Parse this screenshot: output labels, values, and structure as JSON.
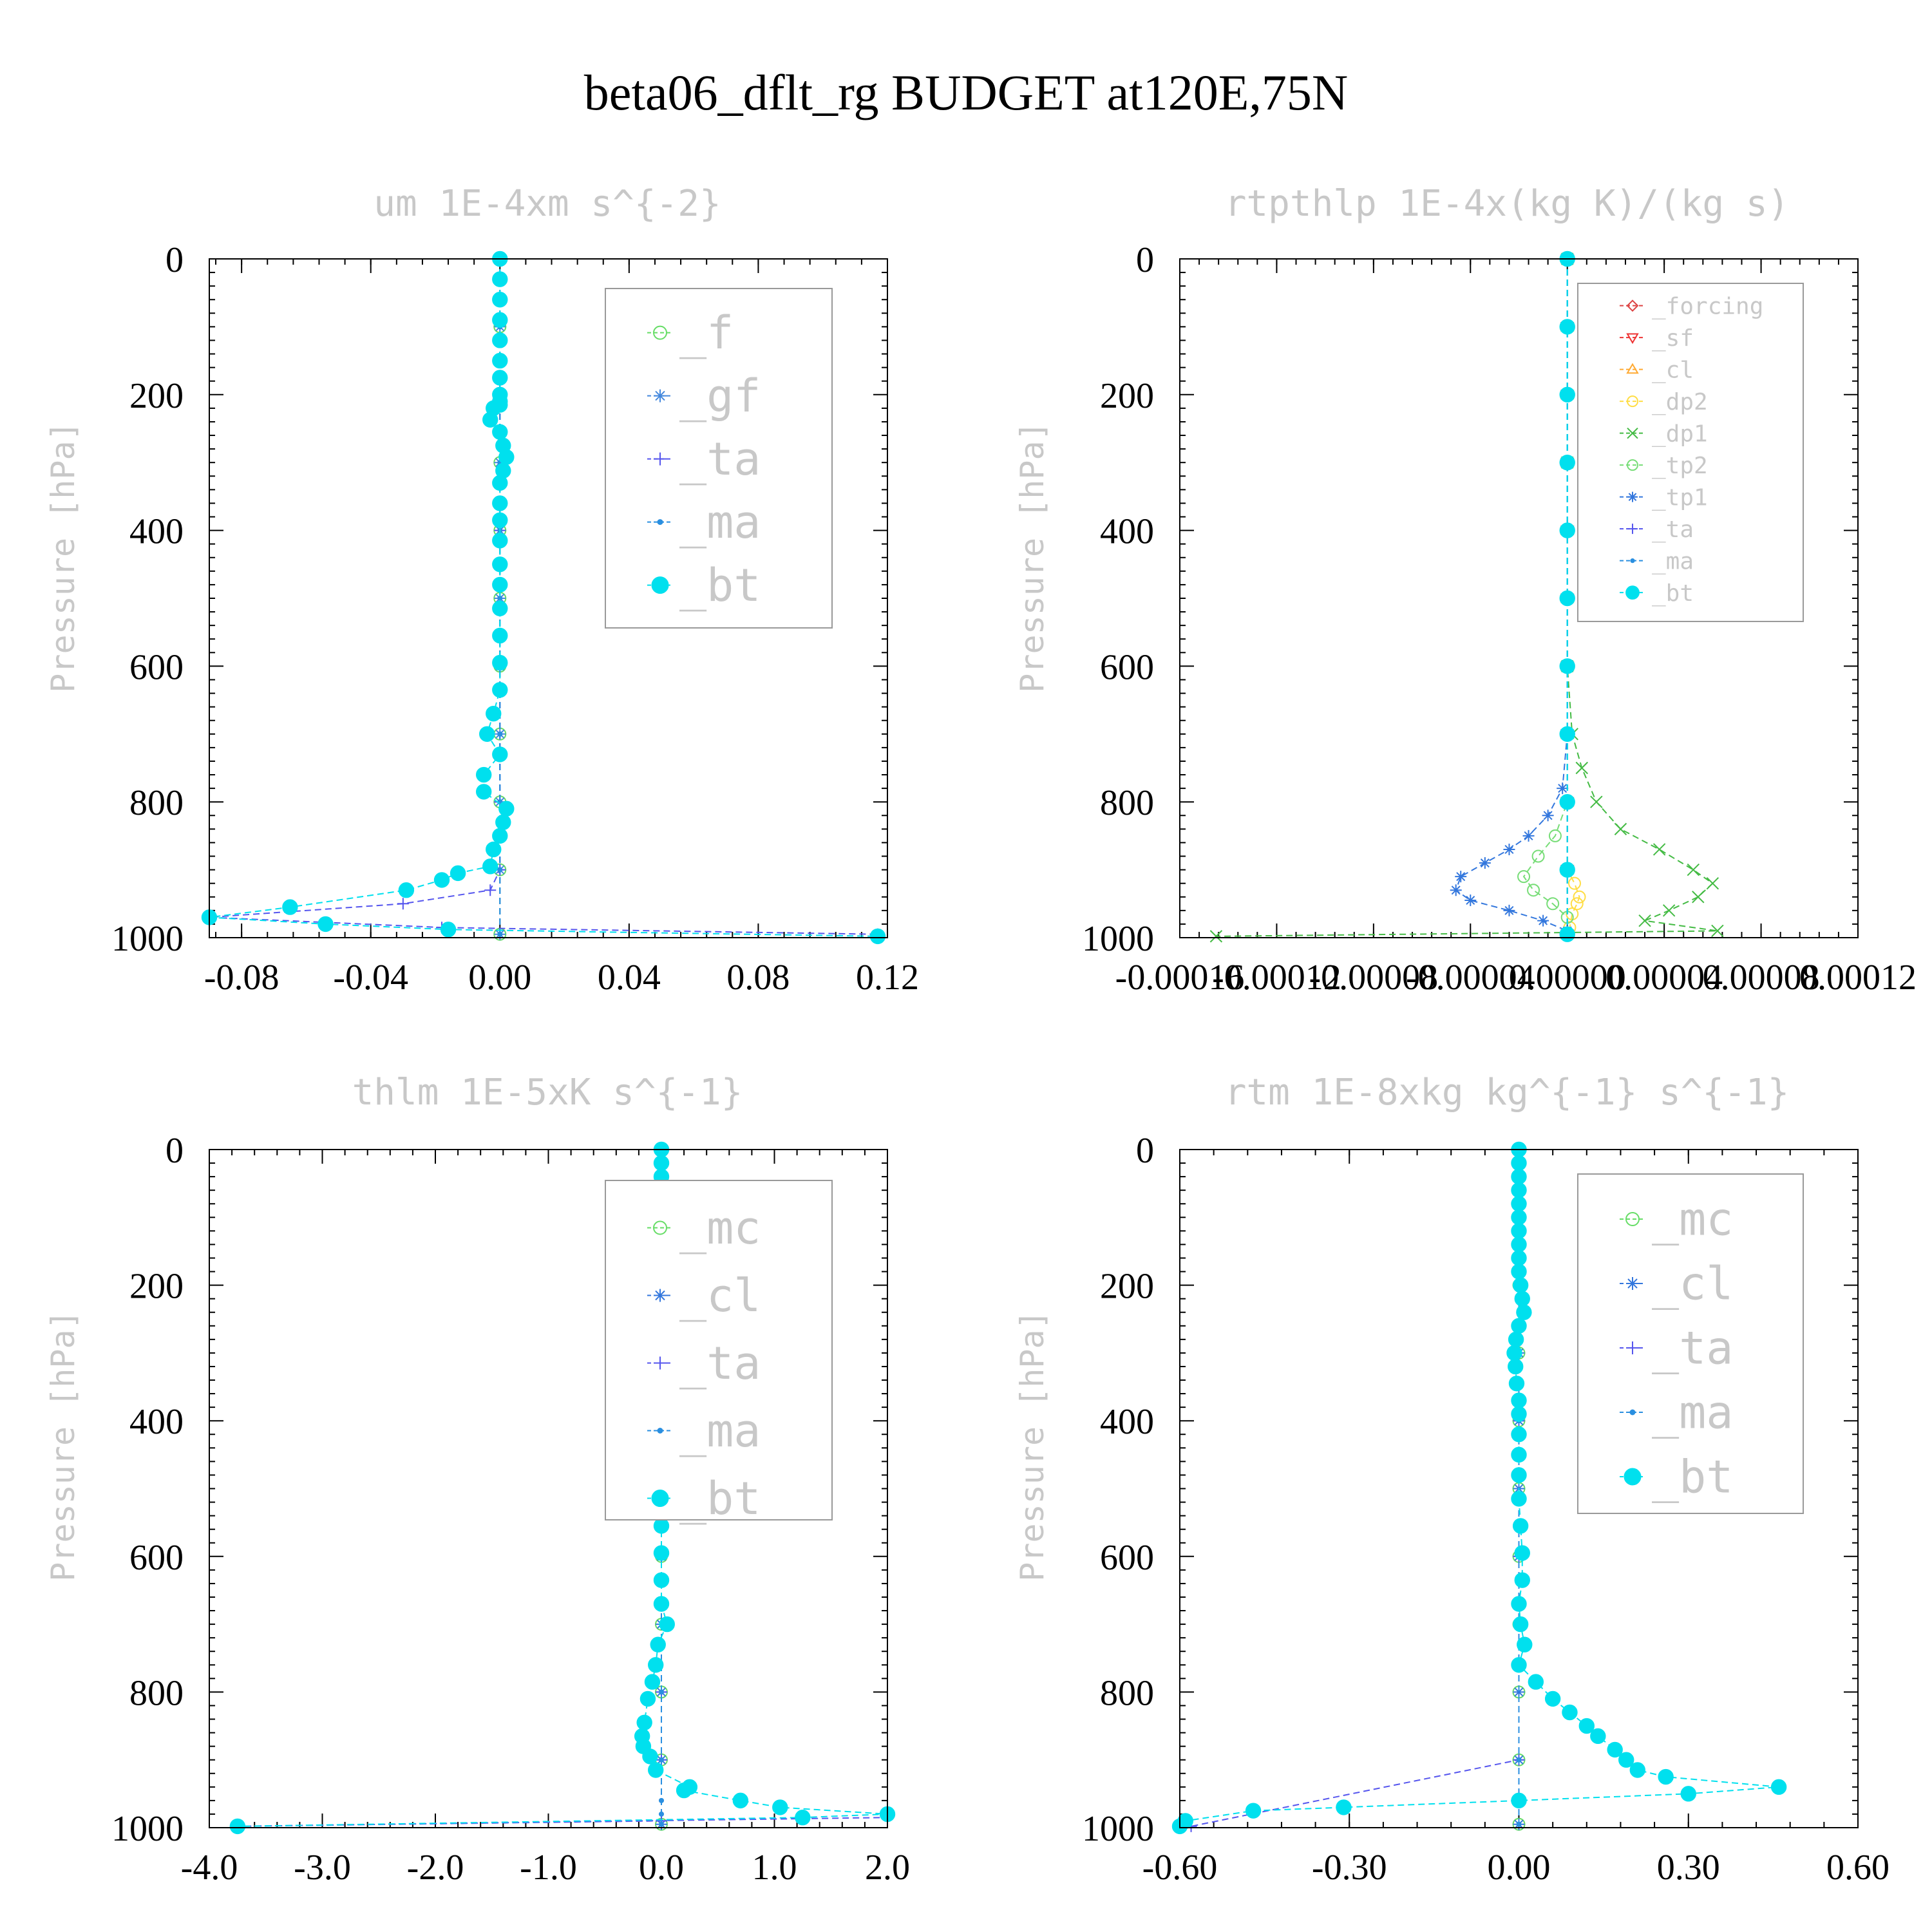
{
  "title": "beta06_dflt_rg  BUDGET at120E,75N",
  "chart_data": [
    {
      "type": "line",
      "title": "um  1E-4xm s^{-2}",
      "ylabel": "Pressure [hPa]",
      "xlim": [
        -0.09,
        0.12
      ],
      "ylim": [
        1000,
        0
      ],
      "xticks": [
        -0.08,
        -0.04,
        0.0,
        0.04,
        0.08,
        0.12
      ],
      "xtick_labels": [
        "-0.08",
        "-0.04",
        "0.00",
        "0.04",
        "0.08",
        "0.12"
      ],
      "yticks": [
        0,
        200,
        400,
        600,
        800,
        1000
      ],
      "ytick_labels": [
        "0",
        "200",
        "400",
        "600",
        "800",
        "1000"
      ],
      "legend": {
        "position": "top-right",
        "entries": [
          "_f",
          "_gf",
          "_ta",
          "_ma",
          "_bt"
        ]
      },
      "series": [
        {
          "name": "_f",
          "color": "#66dd66",
          "marker": "circle-open",
          "x": [
            0,
            0,
            0,
            0,
            0,
            0,
            0,
            0,
            0,
            0,
            0
          ],
          "y": [
            0,
            100,
            200,
            300,
            400,
            500,
            600,
            700,
            800,
            900,
            995
          ]
        },
        {
          "name": "_gf",
          "color": "#4488dd",
          "marker": "star",
          "x": [
            0,
            0,
            0,
            0,
            0,
            0,
            0,
            0,
            0,
            0,
            0
          ],
          "y": [
            0,
            100,
            200,
            300,
            400,
            500,
            600,
            700,
            800,
            900,
            995
          ]
        },
        {
          "name": "_ta",
          "color": "#5555ee",
          "marker": "plus",
          "x": [
            0,
            0,
            0,
            0,
            0,
            0,
            -0.003,
            -0.03,
            -0.09,
            -0.018,
            0.117
          ],
          "y": [
            0,
            200,
            400,
            600,
            800,
            900,
            930,
            950,
            970,
            985,
            995
          ]
        },
        {
          "name": "_ma",
          "color": "#2a8fe0",
          "marker": "dot",
          "x": [
            0,
            0,
            0,
            0,
            0,
            0,
            0,
            0,
            0,
            0,
            0
          ],
          "y": [
            0,
            100,
            200,
            300,
            400,
            500,
            600,
            700,
            800,
            900,
            995
          ]
        },
        {
          "name": "_bt",
          "color": "#00e0ee",
          "marker": "filled-circle",
          "x": [
            0.0,
            0.0,
            0.0,
            0.0,
            0.0,
            0.0,
            0.0,
            0.0,
            0.0,
            0.0,
            -0.002,
            -0.003,
            0.0,
            0.001,
            0.002,
            0.001,
            0.0,
            0.0,
            0.0,
            0.0,
            0.0,
            0.0,
            0.0,
            0.0,
            0.0,
            0.0,
            -0.002,
            -0.004,
            0.0,
            -0.005,
            -0.005,
            0.002,
            0.001,
            0.0,
            -0.002,
            -0.003,
            -0.013,
            -0.018,
            -0.029,
            -0.065,
            -0.09,
            -0.054,
            -0.016,
            0.117
          ],
          "y": [
            0,
            30,
            60,
            90,
            120,
            150,
            175,
            200,
            210,
            215,
            220,
            237,
            255,
            275,
            292,
            312,
            330,
            360,
            385,
            415,
            450,
            480,
            515,
            555,
            595,
            635,
            670,
            700,
            730,
            760,
            785,
            810,
            830,
            850,
            870,
            895,
            905,
            915,
            930,
            955,
            970,
            980,
            988,
            998
          ]
        }
      ]
    },
    {
      "type": "line",
      "title": "rtpthlp  1E-4x(kg K)/(kg s)",
      "ylabel": "Pressure [hPa]",
      "xlim": [
        -0.00016,
        0.00012
      ],
      "ylim": [
        1000,
        0
      ],
      "xticks": [
        -0.00016,
        -0.00012,
        -8e-05,
        -4e-05,
        0.0,
        4e-05,
        8e-05,
        0.00012
      ],
      "xtick_labels": [
        "-0.00016",
        "-0.00012",
        "-0.00008",
        "-0.00004",
        "0.00000",
        "0.00004",
        "0.00008",
        "0.00012"
      ],
      "yticks": [
        0,
        200,
        400,
        600,
        800,
        1000
      ],
      "ytick_labels": [
        "0",
        "200",
        "400",
        "600",
        "800",
        "1000"
      ],
      "legend": {
        "position": "top-right",
        "entries": [
          "_forcing",
          "_sf",
          "_cl",
          "_dp2",
          "_dp1",
          "_tp2",
          "_tp1",
          "_ta",
          "_ma",
          "_bt"
        ]
      },
      "series": [
        {
          "name": "_forcing",
          "color": "#dd4444",
          "marker": "diamond-open",
          "x": [
            0,
            0,
            0,
            0,
            0,
            0,
            0,
            0,
            0,
            0,
            0
          ],
          "y": [
            0,
            100,
            200,
            300,
            400,
            500,
            600,
            700,
            800,
            900,
            995
          ]
        },
        {
          "name": "_sf",
          "color": "#ee3333",
          "marker": "triangle-down",
          "x": [
            0,
            0,
            0,
            0,
            0,
            0,
            0,
            0,
            0,
            0,
            0
          ],
          "y": [
            0,
            100,
            200,
            300,
            400,
            500,
            600,
            700,
            800,
            900,
            995
          ]
        },
        {
          "name": "_cl",
          "color": "#ffaa33",
          "marker": "triangle-up",
          "x": [
            0,
            0,
            0,
            0,
            0,
            0,
            0,
            0,
            0,
            0,
            0
          ],
          "y": [
            0,
            100,
            200,
            300,
            400,
            500,
            600,
            700,
            800,
            900,
            995
          ]
        },
        {
          "name": "_dp2",
          "color": "#ffdd44",
          "marker": "circle-open",
          "x": [
            0,
            0,
            0,
            0,
            0,
            0,
            3e-06,
            5e-06,
            4e-06,
            2e-06,
            1e-06
          ],
          "y": [
            0,
            200,
            400,
            600,
            800,
            900,
            920,
            940,
            950,
            965,
            985
          ]
        },
        {
          "name": "_dp1",
          "color": "#44bb44",
          "marker": "x",
          "x": [
            0,
            0,
            0,
            2e-06,
            6e-06,
            1.2e-05,
            2.2e-05,
            3.8e-05,
            5.2e-05,
            6e-05,
            5.4e-05,
            4.2e-05,
            3.2e-05,
            6.2e-05,
            -0.000145
          ],
          "y": [
            0,
            300,
            600,
            700,
            750,
            800,
            840,
            870,
            900,
            920,
            940,
            960,
            975,
            990,
            998
          ]
        },
        {
          "name": "_tp2",
          "color": "#77dd77",
          "marker": "circle-open",
          "x": [
            0,
            0,
            0,
            0,
            -5e-06,
            -1.2e-05,
            -1.8e-05,
            -1.4e-05,
            -6e-06,
            0.0
          ],
          "y": [
            0,
            400,
            700,
            800,
            850,
            880,
            910,
            930,
            950,
            970
          ]
        },
        {
          "name": "_tp1",
          "color": "#3377dd",
          "marker": "star",
          "x": [
            0,
            0,
            0,
            -2e-06,
            -8e-06,
            -1.6e-05,
            -2.4e-05,
            -3.4e-05,
            -4.4e-05,
            -4.6e-05,
            -4e-05,
            -2.4e-05,
            -1e-05,
            0.0
          ],
          "y": [
            0,
            400,
            700,
            780,
            820,
            850,
            870,
            890,
            910,
            930,
            945,
            960,
            975,
            990
          ]
        },
        {
          "name": "_ta",
          "color": "#5555ee",
          "marker": "plus",
          "x": [
            0,
            0,
            0,
            0,
            0
          ],
          "y": [
            0,
            300,
            600,
            900,
            995
          ]
        },
        {
          "name": "_ma",
          "color": "#2a8fe0",
          "marker": "dot",
          "x": [
            0,
            0,
            0,
            0,
            0
          ],
          "y": [
            0,
            300,
            600,
            900,
            995
          ]
        },
        {
          "name": "_bt",
          "color": "#00e0ee",
          "marker": "filled-circle",
          "x": [
            0,
            0,
            0,
            0,
            0,
            0,
            0,
            0,
            0,
            0,
            0
          ],
          "y": [
            0,
            100,
            200,
            300,
            400,
            500,
            600,
            700,
            800,
            900,
            995
          ]
        }
      ]
    },
    {
      "type": "line",
      "title": "thlm  1E-5xK s^{-1}",
      "ylabel": "Pressure [hPa]",
      "xlim": [
        -4.0,
        2.0
      ],
      "ylim": [
        1000,
        0
      ],
      "xticks": [
        -4.0,
        -3.0,
        -2.0,
        -1.0,
        0.0,
        1.0,
        2.0
      ],
      "xtick_labels": [
        "-4.0",
        "-3.0",
        "-2.0",
        "-1.0",
        "0.0",
        "1.0",
        "2.0"
      ],
      "yticks": [
        0,
        200,
        400,
        600,
        800,
        1000
      ],
      "ytick_labels": [
        "0",
        "200",
        "400",
        "600",
        "800",
        "1000"
      ],
      "legend": {
        "position": "top-right",
        "entries": [
          "_mc",
          "_cl",
          "_ta",
          "_ma",
          "_bt"
        ]
      },
      "series": [
        {
          "name": "_mc",
          "color": "#66dd66",
          "marker": "circle-open",
          "x": [
            0,
            0,
            0,
            0,
            0,
            0,
            0,
            0,
            0,
            0,
            0
          ],
          "y": [
            0,
            100,
            200,
            300,
            400,
            500,
            600,
            700,
            800,
            900,
            995
          ]
        },
        {
          "name": "_cl",
          "color": "#3377dd",
          "marker": "star",
          "x": [
            0,
            0,
            0,
            0,
            0,
            0,
            0,
            0,
            0,
            0,
            0
          ],
          "y": [
            0,
            100,
            200,
            300,
            400,
            500,
            600,
            700,
            800,
            900,
            995
          ]
        },
        {
          "name": "_ta",
          "color": "#5555ee",
          "marker": "plus",
          "x": [
            0,
            0,
            0,
            0,
            0,
            0,
            0,
            -3.75,
            2.0
          ],
          "y": [
            0,
            200,
            400,
            600,
            800,
            900,
            990,
            998,
            985
          ]
        },
        {
          "name": "_ma",
          "color": "#2a8fe0",
          "marker": "dot",
          "x": [
            0,
            0,
            0,
            0,
            0,
            0,
            0,
            0,
            0
          ],
          "y": [
            0,
            200,
            400,
            600,
            800,
            900,
            960,
            980,
            995
          ]
        },
        {
          "name": "_bt",
          "color": "#00e0ee",
          "marker": "filled-circle",
          "x": [
            0.0,
            0.0,
            0.0,
            0.0,
            0.0,
            0.0,
            0.0,
            0.0,
            0.0,
            0.0,
            0.0,
            0.0,
            0.0,
            0.0,
            0.0,
            0.0,
            0.0,
            0.0,
            0.0,
            0.0,
            0.0,
            0.0,
            0.0,
            0.0,
            0.0,
            0.0,
            0.0,
            0.0,
            0.05,
            -0.03,
            -0.05,
            -0.08,
            -0.12,
            -0.15,
            -0.17,
            -0.16,
            -0.1,
            -0.05,
            0.25,
            0.2,
            0.7,
            1.05,
            2.0,
            1.25,
            -3.75
          ],
          "y": [
            0,
            20,
            40,
            60,
            80,
            100,
            120,
            140,
            160,
            180,
            200,
            220,
            240,
            260,
            280,
            300,
            320,
            345,
            370,
            390,
            420,
            450,
            480,
            515,
            555,
            595,
            635,
            670,
            700,
            730,
            760,
            785,
            810,
            845,
            865,
            880,
            895,
            915,
            940,
            945,
            960,
            970,
            980,
            985,
            998
          ]
        }
      ]
    },
    {
      "type": "line",
      "title": "rtm  1E-8xkg kg^{-1} s^{-1}",
      "ylabel": "Pressure [hPa]",
      "xlim": [
        -0.6,
        0.6
      ],
      "ylim": [
        1000,
        0
      ],
      "xticks": [
        -0.6,
        -0.3,
        0.0,
        0.3,
        0.6
      ],
      "xtick_labels": [
        "-0.60",
        "-0.30",
        "0.00",
        "0.30",
        "0.60"
      ],
      "yticks": [
        0,
        200,
        400,
        600,
        800,
        1000
      ],
      "ytick_labels": [
        "0",
        "200",
        "400",
        "600",
        "800",
        "1000"
      ],
      "legend": {
        "position": "top-right",
        "entries": [
          "_mc",
          "_cl",
          "_ta",
          "_ma",
          "_bt"
        ]
      },
      "series": [
        {
          "name": "_mc",
          "color": "#66dd66",
          "marker": "circle-open",
          "x": [
            0,
            0,
            0,
            0,
            0,
            0,
            0,
            0,
            0,
            0,
            0
          ],
          "y": [
            0,
            100,
            200,
            300,
            400,
            500,
            600,
            700,
            800,
            900,
            995
          ]
        },
        {
          "name": "_cl",
          "color": "#3377dd",
          "marker": "star",
          "x": [
            0,
            0,
            0,
            0,
            0,
            0,
            0,
            0,
            0,
            0,
            0
          ],
          "y": [
            0,
            100,
            200,
            300,
            400,
            500,
            600,
            700,
            800,
            900,
            995
          ]
        },
        {
          "name": "_ta",
          "color": "#5555ee",
          "marker": "plus",
          "x": [
            0,
            0,
            0,
            0,
            0,
            -0.58
          ],
          "y": [
            0,
            200,
            400,
            600,
            900,
            998
          ]
        },
        {
          "name": "_ma",
          "color": "#2a8fe0",
          "marker": "dot",
          "x": [
            0,
            0,
            0,
            0,
            0,
            0
          ],
          "y": [
            0,
            200,
            400,
            600,
            900,
            995
          ]
        },
        {
          "name": "_bt",
          "color": "#00e0ee",
          "marker": "filled-circle",
          "x": [
            0.0,
            0.0,
            0.0,
            0.0,
            0.0,
            0.0,
            0.0,
            0.0,
            0.0,
            0.0,
            0.003,
            0.006,
            0.009,
            0.0,
            -0.005,
            -0.008,
            -0.006,
            -0.004,
            0.0,
            0.0,
            0.0,
            0.0,
            0.0,
            0.0,
            0.003,
            0.006,
            0.006,
            0.0,
            0.003,
            0.01,
            0.0,
            0.03,
            0.06,
            0.09,
            0.12,
            0.14,
            0.17,
            0.19,
            0.21,
            0.26,
            0.46,
            0.3,
            0.0,
            -0.31,
            -0.47,
            -0.59,
            -0.6
          ],
          "y": [
            0,
            20,
            40,
            60,
            80,
            100,
            120,
            140,
            160,
            180,
            200,
            220,
            240,
            260,
            280,
            300,
            320,
            345,
            370,
            390,
            420,
            450,
            480,
            515,
            555,
            595,
            635,
            670,
            700,
            730,
            760,
            785,
            810,
            830,
            850,
            865,
            885,
            900,
            915,
            925,
            940,
            950,
            960,
            970,
            975,
            990,
            998
          ]
        }
      ]
    }
  ]
}
